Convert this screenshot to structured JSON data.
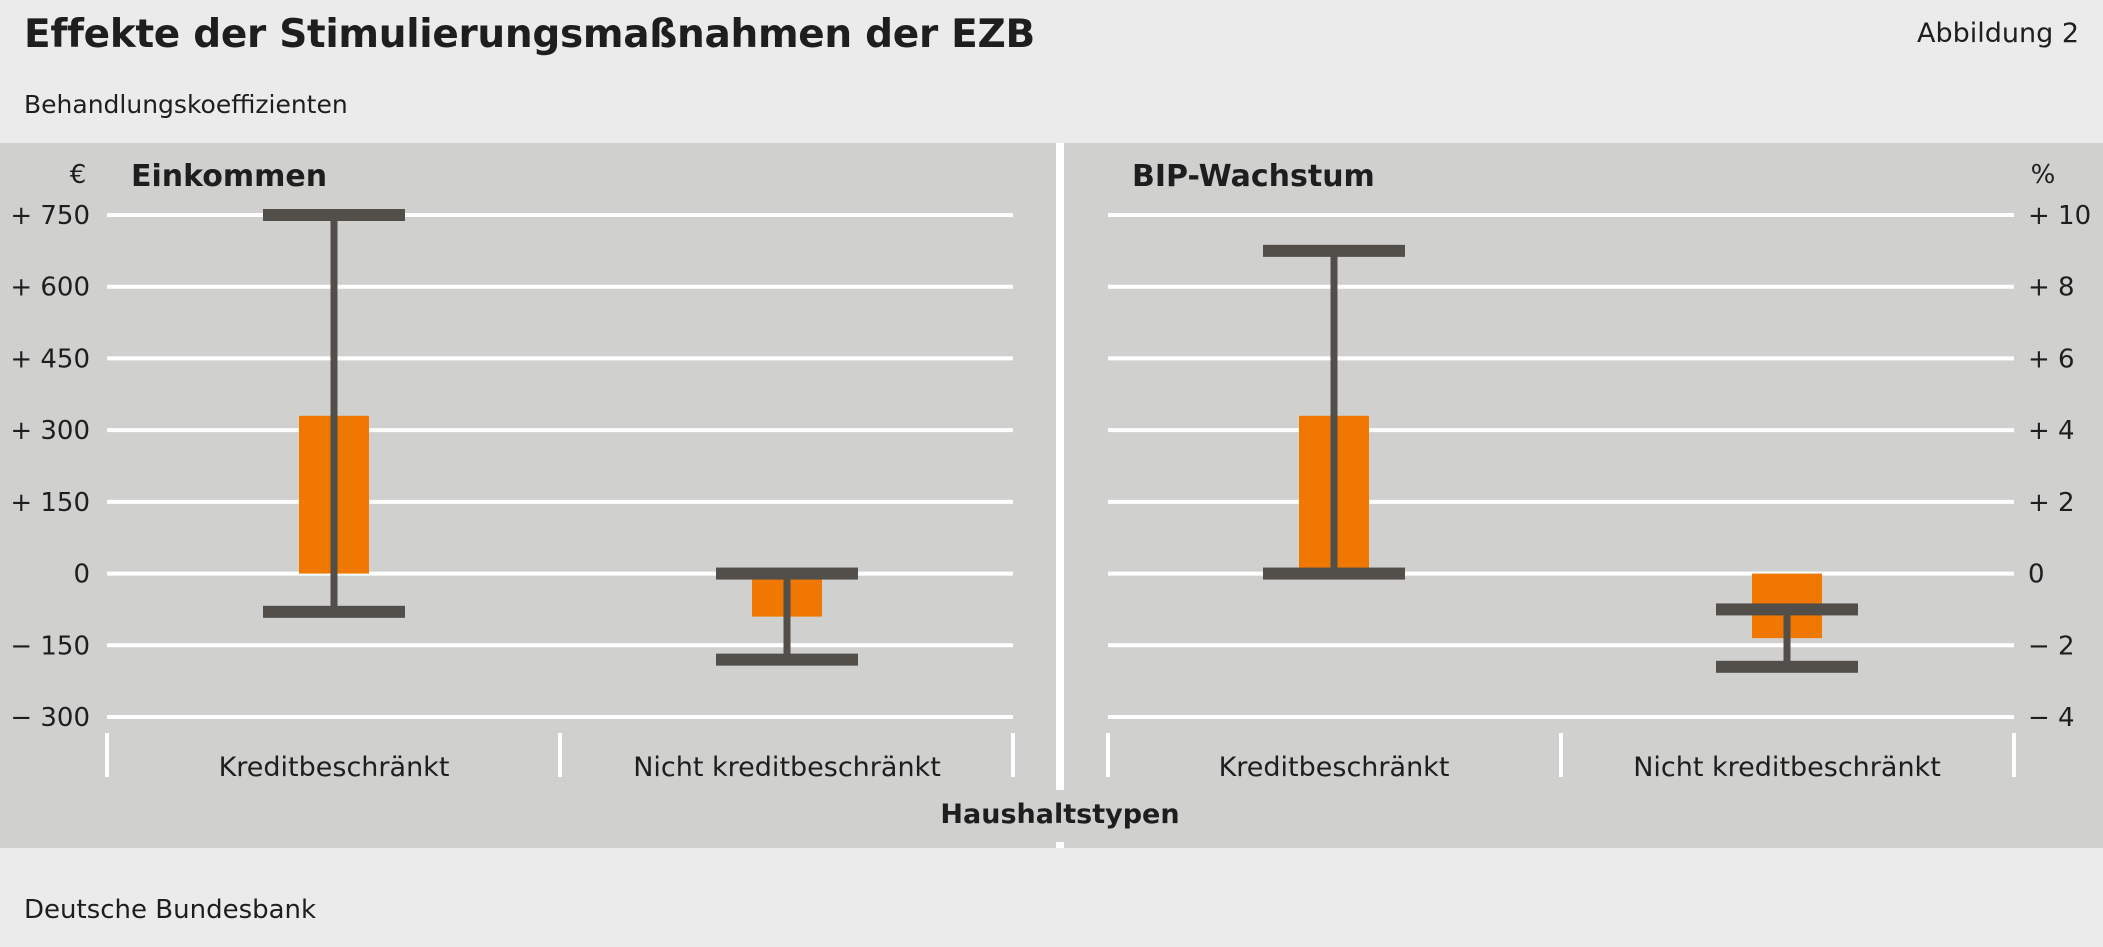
{
  "header": {
    "title": "Effekte der Stimulierungsmaßnahmen der EZB",
    "figure_number": "Abbildung 2",
    "subtitle": "Behandlungskoeffizienten"
  },
  "footer": {
    "source": "Deutsche Bundesbank"
  },
  "colors": {
    "bar": "#f07800",
    "whisker": "#524e4a",
    "panel": "#d0d0cf",
    "grid": "#ffffff",
    "page": "#ebebeb"
  },
  "chart_data": [
    {
      "type": "bar",
      "title": "Einkommen",
      "unit": "€",
      "xlabel": "Haushaltstypen",
      "categories": [
        "Kreditbeschränkt",
        "Nicht kreditbeschränkt"
      ],
      "values": [
        330,
        -90
      ],
      "error_low": [
        -80,
        -180
      ],
      "error_high": [
        750,
        0
      ],
      "ylim": [
        -300,
        750
      ],
      "yticks": [
        750,
        600,
        450,
        300,
        150,
        0,
        -150,
        -300
      ],
      "ytick_labels": [
        "+ 750",
        "+ 600",
        "+ 450",
        "+ 300",
        "+ 150",
        "0",
        "− 150",
        "− 300"
      ],
      "axis_side": "left",
      "grid": true
    },
    {
      "type": "bar",
      "title": "BIP-Wachstum",
      "unit": "%",
      "xlabel": "Haushaltstypen",
      "categories": [
        "Kreditbeschränkt",
        "Nicht kreditbeschränkt"
      ],
      "values": [
        4.4,
        -1.8
      ],
      "error_low": [
        0,
        -2.6
      ],
      "error_high": [
        9,
        -1
      ],
      "ylim": [
        -4,
        10
      ],
      "yticks": [
        10,
        8,
        6,
        4,
        2,
        0,
        -2,
        -4
      ],
      "ytick_labels": [
        "+ 10",
        "+ 8",
        "+ 6",
        "+ 4",
        "+ 2",
        "0",
        "− 2",
        "− 4"
      ],
      "axis_side": "right",
      "grid": true
    }
  ]
}
